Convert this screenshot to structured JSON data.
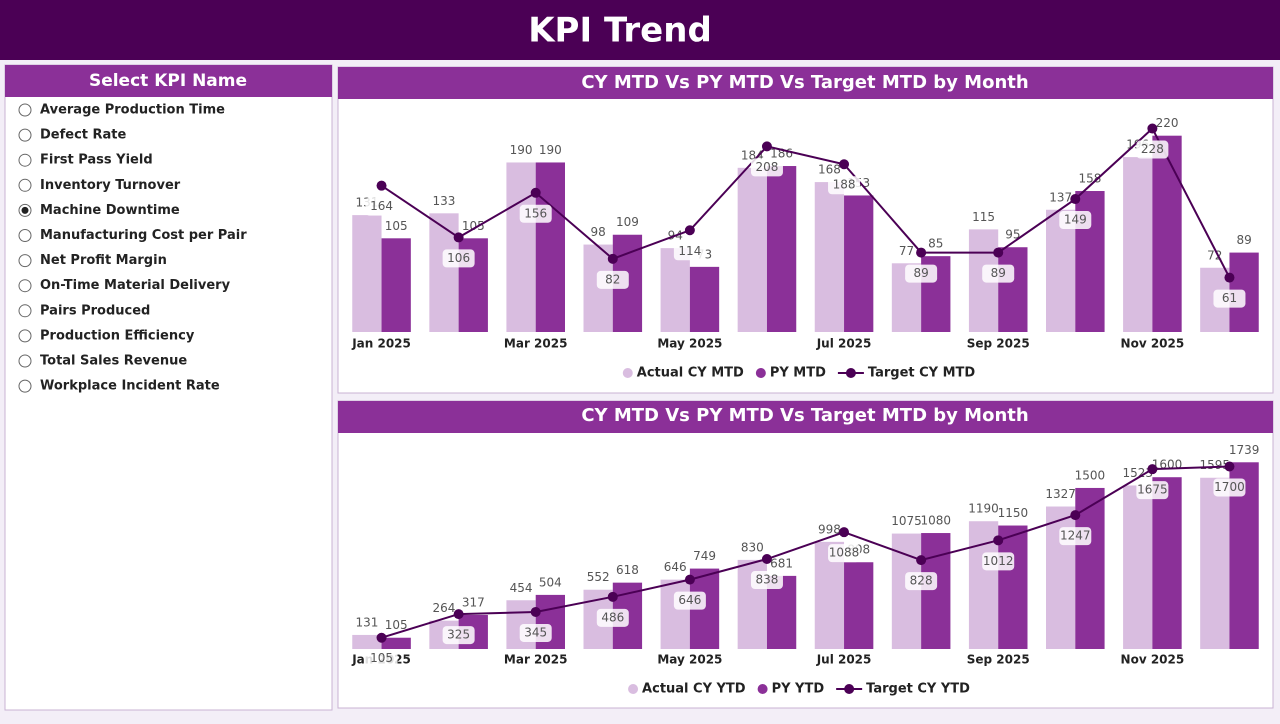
{
  "header": {
    "title": "KPI Trend"
  },
  "slicer": {
    "title": "Select KPI Name",
    "selected": 4,
    "options": [
      "Average Production Time",
      "Defect Rate",
      "First Pass Yield",
      "Inventory Turnover",
      "Machine Downtime",
      "Manufacturing Cost per Pair",
      "Net Profit Margin",
      "On-Time Material Delivery",
      "Pairs Produced",
      "Production Efficiency",
      "Total Sales Revenue",
      "Workplace Incident Rate"
    ]
  },
  "chart_data": [
    {
      "type": "bar",
      "title": "CY MTD Vs PY MTD Vs Target MTD by Month",
      "categories": [
        "Jan 2025",
        null,
        "Mar 2025",
        null,
        "May 2025",
        null,
        "Jul 2025",
        null,
        "Sep 2025",
        null,
        "Nov 2025",
        null
      ],
      "ylim": [
        0,
        260
      ],
      "series": [
        {
          "name": "Actual CY MTD",
          "color": "#d9bde0",
          "values": [
            131,
            133,
            190,
            98,
            94,
            184,
            168,
            77,
            115,
            137,
            196,
            72
          ]
        },
        {
          "name": "PY MTD",
          "color": "#8b3098",
          "values": [
            105,
            105,
            190,
            109,
            73,
            186,
            153,
            85,
            95,
            158,
            220,
            89
          ]
        },
        {
          "name": "Target CY MTD",
          "color": "#4b0055",
          "type": "line",
          "values": [
            164,
            106,
            156,
            82,
            114,
            208,
            188,
            89,
            89,
            149,
            228,
            61
          ]
        }
      ]
    },
    {
      "type": "bar",
      "title": "CY MTD Vs PY MTD Vs Target MTD by Month",
      "categories": [
        "Jan 2025",
        null,
        "Mar 2025",
        null,
        "May 2025",
        null,
        "Jul 2025",
        null,
        "Sep 2025",
        null,
        "Nov 2025",
        null
      ],
      "ylim": [
        0,
        1900
      ],
      "series": [
        {
          "name": "Actual CY YTD",
          "color": "#d9bde0",
          "values": [
            131,
            264,
            454,
            552,
            646,
            830,
            998,
            1075,
            1190,
            1327,
            1523,
            1595
          ]
        },
        {
          "name": "PY YTD",
          "color": "#8b3098",
          "values": [
            105,
            317,
            504,
            618,
            749,
            681,
            808,
            1080,
            1150,
            1500,
            1600,
            1739
          ]
        },
        {
          "name": "Target CY YTD",
          "color": "#4b0055",
          "type": "line",
          "values": [
            105,
            325,
            345,
            486,
            646,
            838,
            1088,
            828,
            1012,
            1247,
            1675,
            1700
          ]
        }
      ]
    }
  ]
}
